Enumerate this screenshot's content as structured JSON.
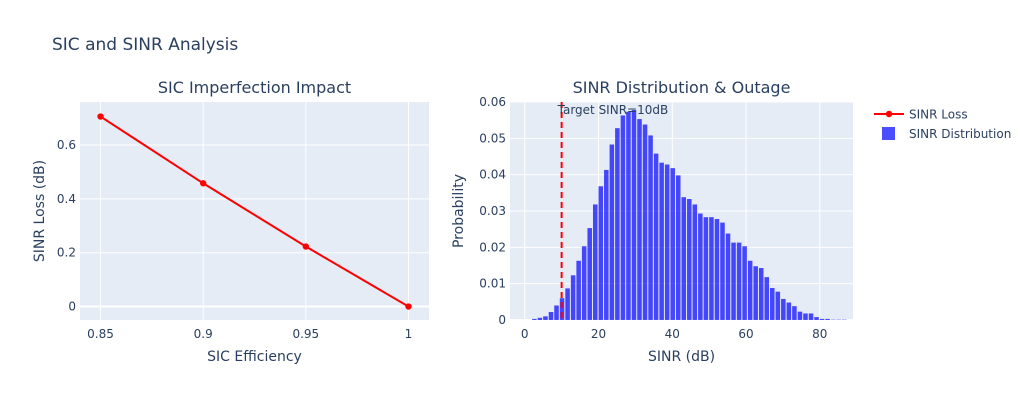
{
  "figure": {
    "title": "SIC and SINR Analysis"
  },
  "colors": {
    "plot_bg": "#E5ECF6",
    "grid": "#FFFFFF",
    "text": "#2a3f5f",
    "loss_line": "#FF0000",
    "histogram": "#0000FF",
    "target_line": "#FF0000"
  },
  "legend": {
    "position": "right",
    "items": [
      {
        "label": "SINR Loss",
        "kind": "line-marker"
      },
      {
        "label": "SINR Distribution",
        "kind": "bar"
      }
    ]
  },
  "chart_data": [
    {
      "type": "line",
      "title": "SIC Imperfection Impact",
      "xlabel": "SIC Efficiency",
      "ylabel": "SINR Loss (dB)",
      "xlim": [
        0.84,
        1.01
      ],
      "ylim": [
        -0.05,
        0.76
      ],
      "xticks": [
        0.85,
        0.9,
        0.95,
        1
      ],
      "xtick_labels": [
        "0.85",
        "0.9",
        "0.95",
        "1"
      ],
      "yticks": [
        0,
        0.2,
        0.4,
        0.6
      ],
      "ytick_labels": [
        "0",
        "0.2",
        "0.4",
        "0.6"
      ],
      "grid": true,
      "series": [
        {
          "name": "SINR Loss",
          "x": [
            0.85,
            0.9,
            0.95,
            1.0
          ],
          "y": [
            0.706,
            0.458,
            0.223,
            0.0
          ]
        }
      ]
    },
    {
      "type": "bar",
      "subtype": "histogram",
      "title": "SINR Distribution & Outage",
      "xlabel": "SINR (dB)",
      "ylabel": "Probability",
      "xlim": [
        -4,
        89
      ],
      "ylim": [
        0,
        0.06
      ],
      "xticks": [
        0,
        20,
        40,
        60,
        80
      ],
      "xtick_labels": [
        "0",
        "20",
        "40",
        "60",
        "80"
      ],
      "yticks": [
        0,
        0.01,
        0.02,
        0.03,
        0.04,
        0.05,
        0.06
      ],
      "ytick_labels": [
        "0",
        "0.01",
        "0.02",
        "0.03",
        "0.04",
        "0.05",
        "0.06"
      ],
      "grid": true,
      "bin_width": 1.5,
      "series": [
        {
          "name": "SINR Distribution",
          "bin_start": [
            -4,
            -2.5,
            -1,
            0.5,
            2,
            3.5,
            5,
            6.5,
            8,
            9.5,
            11,
            12.5,
            14,
            15.5,
            17,
            18.5,
            20,
            21.5,
            23,
            24.5,
            26,
            27.5,
            29,
            30.5,
            32,
            33.5,
            35,
            36.5,
            38,
            39.5,
            41,
            42.5,
            44,
            45.5,
            47,
            48.5,
            50,
            51.5,
            53,
            54.5,
            56,
            57.5,
            59,
            60.5,
            62,
            63.5,
            65,
            66.5,
            68,
            69.5,
            71,
            72.5,
            74,
            75.5,
            77,
            78.5,
            80,
            81.5,
            83,
            84.5,
            86,
            87.5
          ],
          "values": [
            0,
            0,
            0,
            0,
            0.0003,
            0.0006,
            0.001,
            0.0022,
            0.004,
            0.006,
            0.0087,
            0.0123,
            0.0163,
            0.0203,
            0.0253,
            0.0318,
            0.0368,
            0.0413,
            0.0483,
            0.0528,
            0.0563,
            0.0573,
            0.0578,
            0.0553,
            0.0538,
            0.0508,
            0.0458,
            0.0433,
            0.0428,
            0.0418,
            0.0398,
            0.0338,
            0.0333,
            0.0318,
            0.0293,
            0.0283,
            0.0283,
            0.0278,
            0.0268,
            0.0238,
            0.0213,
            0.0213,
            0.0203,
            0.0163,
            0.0148,
            0.0143,
            0.0118,
            0.0088,
            0.0078,
            0.0058,
            0.0048,
            0.0038,
            0.0023,
            0.0018,
            0.0018,
            0.0008,
            0.0003,
            0.0003,
            0.0001,
            0.0001,
            0.0001,
            0
          ]
        }
      ],
      "annotations": [
        {
          "type": "vline",
          "x": 10,
          "style": "dashed",
          "label": "Target SINR=10dB"
        }
      ]
    }
  ]
}
